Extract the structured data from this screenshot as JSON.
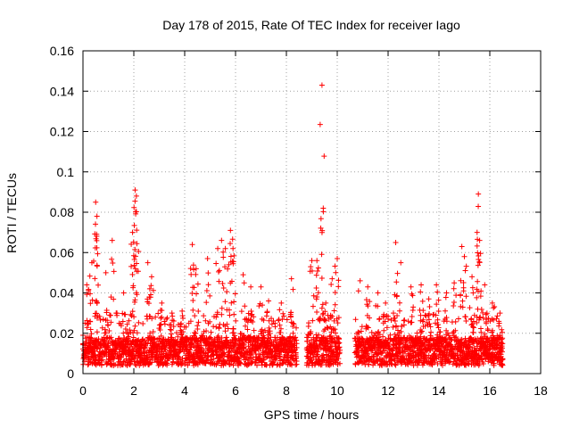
{
  "chart_data": {
    "type": "scatter",
    "title": "Day 178 of 2015, Rate Of TEC Index for receiver Iago",
    "xlabel": "GPS time / hours",
    "ylabel": "ROTI / TECUs",
    "xlim": [
      0,
      18
    ],
    "ylim": [
      0,
      0.16
    ],
    "xticks": [
      0,
      2,
      4,
      6,
      8,
      10,
      12,
      14,
      16,
      18
    ],
    "xtick_labels": [
      "0",
      "2",
      "4",
      "6",
      "8",
      "10",
      "12",
      "14",
      "16",
      "18"
    ],
    "yticks": [
      0,
      0.02,
      0.04,
      0.06,
      0.08,
      0.1,
      0.12,
      0.14,
      0.16
    ],
    "ytick_labels": [
      "0",
      "0.02",
      "0.04",
      "0.06",
      "0.08",
      "0.1",
      "0.12",
      "0.14",
      "0.16"
    ],
    "grid": true,
    "marker": "+",
    "marker_color": "#ff0000",
    "series": [
      {
        "name": "ROTI",
        "segments": [
          [
            0,
            8.4
          ],
          [
            8.8,
            10.1
          ],
          [
            10.7,
            16.5
          ]
        ],
        "peaks": [
          [
            0.15,
            0.044
          ],
          [
            0.35,
            0.055
          ],
          [
            0.5,
            0.085
          ],
          [
            0.55,
            0.078
          ],
          [
            0.9,
            0.05
          ],
          [
            1.15,
            0.066
          ],
          [
            1.6,
            0.04
          ],
          [
            1.95,
            0.07
          ],
          [
            2.05,
            0.091
          ],
          [
            2.1,
            0.088
          ],
          [
            2.55,
            0.055
          ],
          [
            2.7,
            0.048
          ],
          [
            3.1,
            0.035
          ],
          [
            3.5,
            0.03
          ],
          [
            3.9,
            0.031
          ],
          [
            4.3,
            0.064
          ],
          [
            4.45,
            0.052
          ],
          [
            4.9,
            0.057
          ],
          [
            5.3,
            0.062
          ],
          [
            5.45,
            0.066
          ],
          [
            5.6,
            0.062
          ],
          [
            5.8,
            0.071
          ],
          [
            5.9,
            0.062
          ],
          [
            6.3,
            0.049
          ],
          [
            6.6,
            0.043
          ],
          [
            7.0,
            0.043
          ],
          [
            7.3,
            0.036
          ],
          [
            7.8,
            0.035
          ],
          [
            8.2,
            0.047
          ],
          [
            9.0,
            0.056
          ],
          [
            9.2,
            0.056
          ],
          [
            9.4,
            0.143
          ],
          [
            9.45,
            0.082
          ],
          [
            9.55,
            0.035
          ],
          [
            9.8,
            0.047
          ],
          [
            10.0,
            0.057
          ],
          [
            10.9,
            0.046
          ],
          [
            11.2,
            0.043
          ],
          [
            11.6,
            0.04
          ],
          [
            11.9,
            0.035
          ],
          [
            12.3,
            0.065
          ],
          [
            12.5,
            0.055
          ],
          [
            12.9,
            0.043
          ],
          [
            13.3,
            0.044
          ],
          [
            13.6,
            0.037
          ],
          [
            13.9,
            0.044
          ],
          [
            14.3,
            0.04
          ],
          [
            14.6,
            0.045
          ],
          [
            14.9,
            0.063
          ],
          [
            15.0,
            0.058
          ],
          [
            15.3,
            0.048
          ],
          [
            15.5,
            0.07
          ],
          [
            15.55,
            0.089
          ],
          [
            15.6,
            0.066
          ],
          [
            15.8,
            0.044
          ],
          [
            16.1,
            0.035
          ],
          [
            16.4,
            0.03
          ]
        ]
      }
    ]
  }
}
